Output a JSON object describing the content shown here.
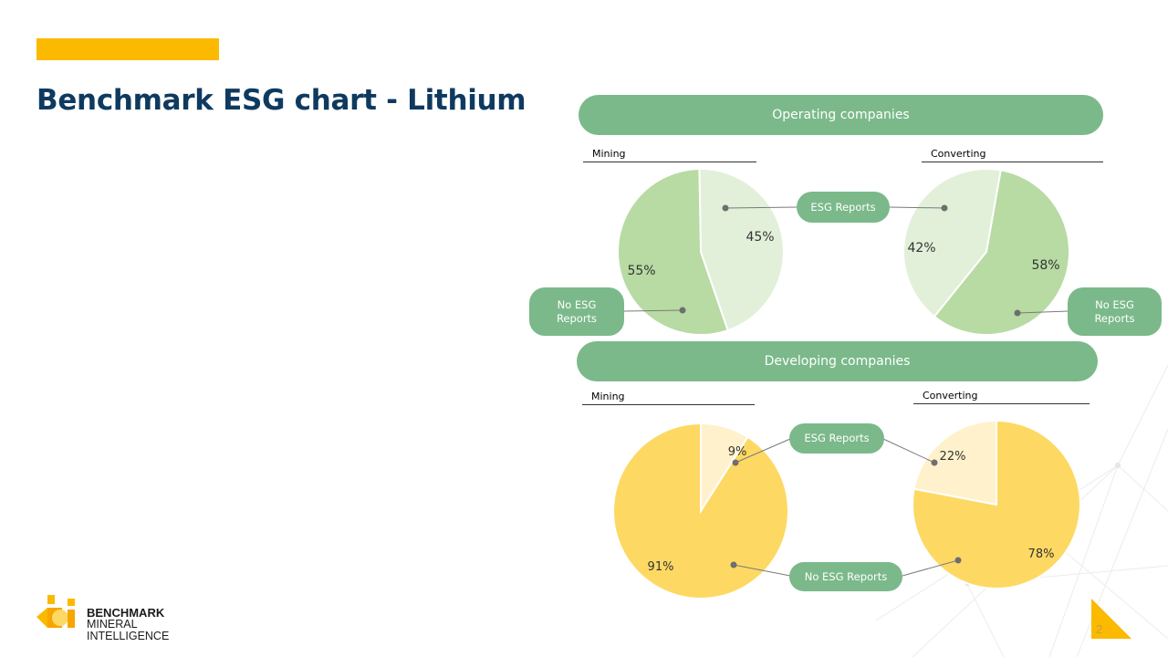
{
  "title": "Benchmark ESG chart - Lithium",
  "sections": {
    "operating": "Operating companies",
    "developing": "Developing companies"
  },
  "sublabels": {
    "op_mining": "Mining",
    "op_converting": "Converting",
    "dev_mining": "Mining",
    "dev_converting": "Converting"
  },
  "callouts": {
    "op_esg": "ESG Reports",
    "op_no_esg_left": "No ESG Reports",
    "op_no_esg_right": "No ESG Reports",
    "dev_esg": "ESG Reports",
    "dev_no_esg": "No ESG Reports"
  },
  "logo": {
    "line1": "BENCHMARK",
    "line2": "MINERAL",
    "line3": "INTELLIGENCE"
  },
  "page_number": "2",
  "colors": {
    "green_dark": "#b7dba3",
    "green_light": "#e2f0d9",
    "yellow_dark": "#fdd964",
    "yellow_light": "#fff1cc",
    "pill": "#7bb98a",
    "title": "#0f3a60",
    "accent": "#fbb900"
  },
  "chart_data": [
    {
      "type": "pie",
      "group": "Operating companies",
      "title": "Mining",
      "slices": [
        {
          "label": "ESG Reports",
          "value": 45,
          "display": "45%"
        },
        {
          "label": "No ESG Reports",
          "value": 55,
          "display": "55%"
        }
      ]
    },
    {
      "type": "pie",
      "group": "Operating companies",
      "title": "Converting",
      "slices": [
        {
          "label": "ESG Reports",
          "value": 42,
          "display": "42%"
        },
        {
          "label": "No ESG Reports",
          "value": 58,
          "display": "58%"
        }
      ]
    },
    {
      "type": "pie",
      "group": "Developing companies",
      "title": "Mining",
      "slices": [
        {
          "label": "ESG Reports",
          "value": 9,
          "display": "9%"
        },
        {
          "label": "No ESG Reports",
          "value": 91,
          "display": "91%"
        }
      ]
    },
    {
      "type": "pie",
      "group": "Developing companies",
      "title": "Converting",
      "slices": [
        {
          "label": "ESG Reports",
          "value": 22,
          "display": "22%"
        },
        {
          "label": "No ESG Reports",
          "value": 78,
          "display": "78%"
        }
      ]
    }
  ]
}
